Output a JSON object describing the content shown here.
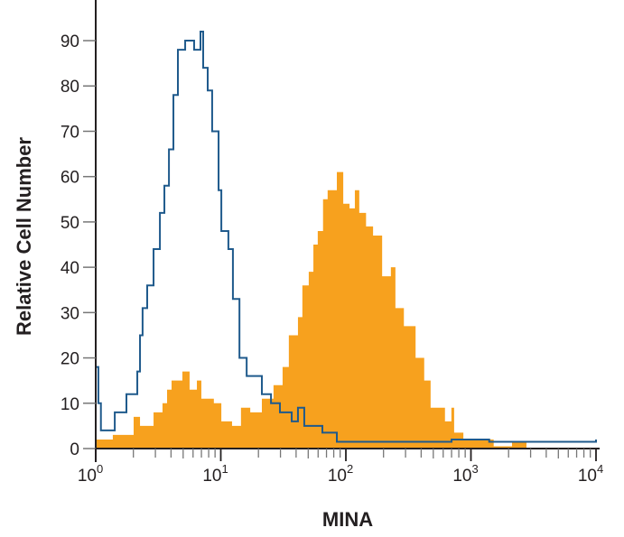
{
  "chart_data": {
    "type": "histogram",
    "title": "",
    "xlabel": "MINA",
    "ylabel": "Relative Cell Number",
    "xscale": "log",
    "xlim": [
      1,
      10000
    ],
    "ylim": [
      0,
      95
    ],
    "x_tick_labels": [
      {
        "base": "10",
        "exp": "0",
        "value": 1
      },
      {
        "base": "10",
        "exp": "1",
        "value": 10
      },
      {
        "base": "10",
        "exp": "2",
        "value": 100
      },
      {
        "base": "10",
        "exp": "3",
        "value": 1000
      },
      {
        "base": "10",
        "exp": "4",
        "value": 10000
      }
    ],
    "y_ticks": [
      "0",
      "10",
      "20",
      "30",
      "40",
      "50",
      "60",
      "70",
      "80",
      "90"
    ],
    "grid": false,
    "legend": "none",
    "series": [
      {
        "style": "filled",
        "color": "#F7A11E",
        "points": [
          [
            1.0,
            2
          ],
          [
            1.03,
            2
          ],
          [
            1.37,
            3
          ],
          [
            2.01,
            7
          ],
          [
            2.26,
            5
          ],
          [
            2.9,
            8
          ],
          [
            3.42,
            10
          ],
          [
            3.72,
            13
          ],
          [
            4.04,
            15
          ],
          [
            4.93,
            17
          ],
          [
            5.63,
            13
          ],
          [
            6.44,
            15
          ],
          [
            6.99,
            11
          ],
          [
            8.8,
            10
          ],
          [
            10.1,
            6
          ],
          [
            12.3,
            5
          ],
          [
            14.5,
            9
          ],
          [
            17.2,
            8
          ],
          [
            21.3,
            11
          ],
          [
            26.4,
            14
          ],
          [
            31.2,
            18
          ],
          [
            35,
            25
          ],
          [
            41.4,
            29
          ],
          [
            44.9,
            36
          ],
          [
            50.5,
            39
          ],
          [
            55,
            45
          ],
          [
            59.6,
            48
          ],
          [
            65.7,
            55
          ],
          [
            71.5,
            57
          ],
          [
            84.7,
            61
          ],
          [
            95.3,
            54
          ],
          [
            107,
            53
          ],
          [
            118,
            57
          ],
          [
            128,
            52
          ],
          [
            145,
            49
          ],
          [
            165,
            47
          ],
          [
            195,
            38
          ],
          [
            229,
            40
          ],
          [
            249,
            31
          ],
          [
            291,
            27
          ],
          [
            361,
            20
          ],
          [
            423,
            15
          ],
          [
            476,
            9
          ],
          [
            561,
            9
          ],
          [
            620,
            6
          ],
          [
            698,
            9
          ],
          [
            734,
            3.5
          ],
          [
            870,
            2
          ],
          [
            1200,
            2
          ],
          [
            1520,
            0.5
          ],
          [
            2130,
            1.5
          ],
          [
            2780,
            0
          ]
        ]
      },
      {
        "style": "outline",
        "color": "#1F5A8C",
        "points": [
          [
            1.0,
            18
          ],
          [
            1.05,
            10
          ],
          [
            1.1,
            4
          ],
          [
            1.42,
            8
          ],
          [
            1.76,
            12
          ],
          [
            2.15,
            17
          ],
          [
            2.26,
            25
          ],
          [
            2.37,
            31
          ],
          [
            2.58,
            36
          ],
          [
            2.9,
            44
          ],
          [
            3.26,
            52
          ],
          [
            3.54,
            58
          ],
          [
            3.85,
            66
          ],
          [
            4.18,
            78
          ],
          [
            4.54,
            88
          ],
          [
            5.19,
            90
          ],
          [
            6.12,
            88
          ],
          [
            6.88,
            92
          ],
          [
            7.23,
            84
          ],
          [
            7.86,
            79
          ],
          [
            8.53,
            70
          ],
          [
            9.6,
            57
          ],
          [
            10.1,
            48
          ],
          [
            11.5,
            44
          ],
          [
            12.5,
            33
          ],
          [
            14.1,
            20
          ],
          [
            16.1,
            16
          ],
          [
            20.3,
            16
          ],
          [
            21.3,
            12
          ],
          [
            25.2,
            10
          ],
          [
            29.7,
            8
          ],
          [
            36.9,
            6
          ],
          [
            41.4,
            9
          ],
          [
            46.5,
            5
          ],
          [
            64.9,
            3.5
          ],
          [
            84.7,
            1.5
          ],
          [
            700,
            2
          ],
          [
            1400,
            1.5
          ],
          [
            9600,
            1.5
          ],
          [
            10000,
            2
          ]
        ]
      }
    ]
  }
}
